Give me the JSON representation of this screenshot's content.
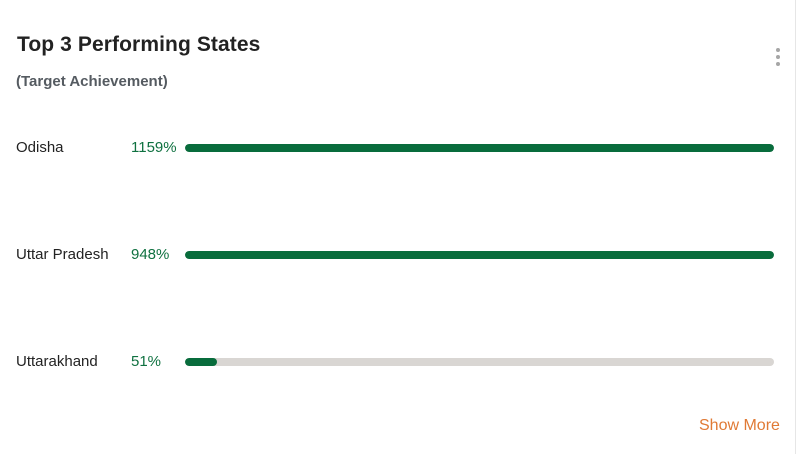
{
  "widget": {
    "title": "Top 3 Performing States",
    "subtitle": "(Target Achievement)",
    "show_more_label": "Show More",
    "menu_icon": "kebab-menu-icon"
  },
  "colors": {
    "bar_fill": "#086c3c",
    "bar_track": "#d9d6d3",
    "percent_text": "#0f7140",
    "link": "#e07a35"
  },
  "states": [
    {
      "name": "Odisha",
      "percent_label": "1159%",
      "fill_fraction": 1.0
    },
    {
      "name": "Uttar Pradesh",
      "percent_label": "948%",
      "fill_fraction": 1.0
    },
    {
      "name": "Uttarakhand",
      "percent_label": "51%",
      "fill_fraction": 0.055
    }
  ]
}
